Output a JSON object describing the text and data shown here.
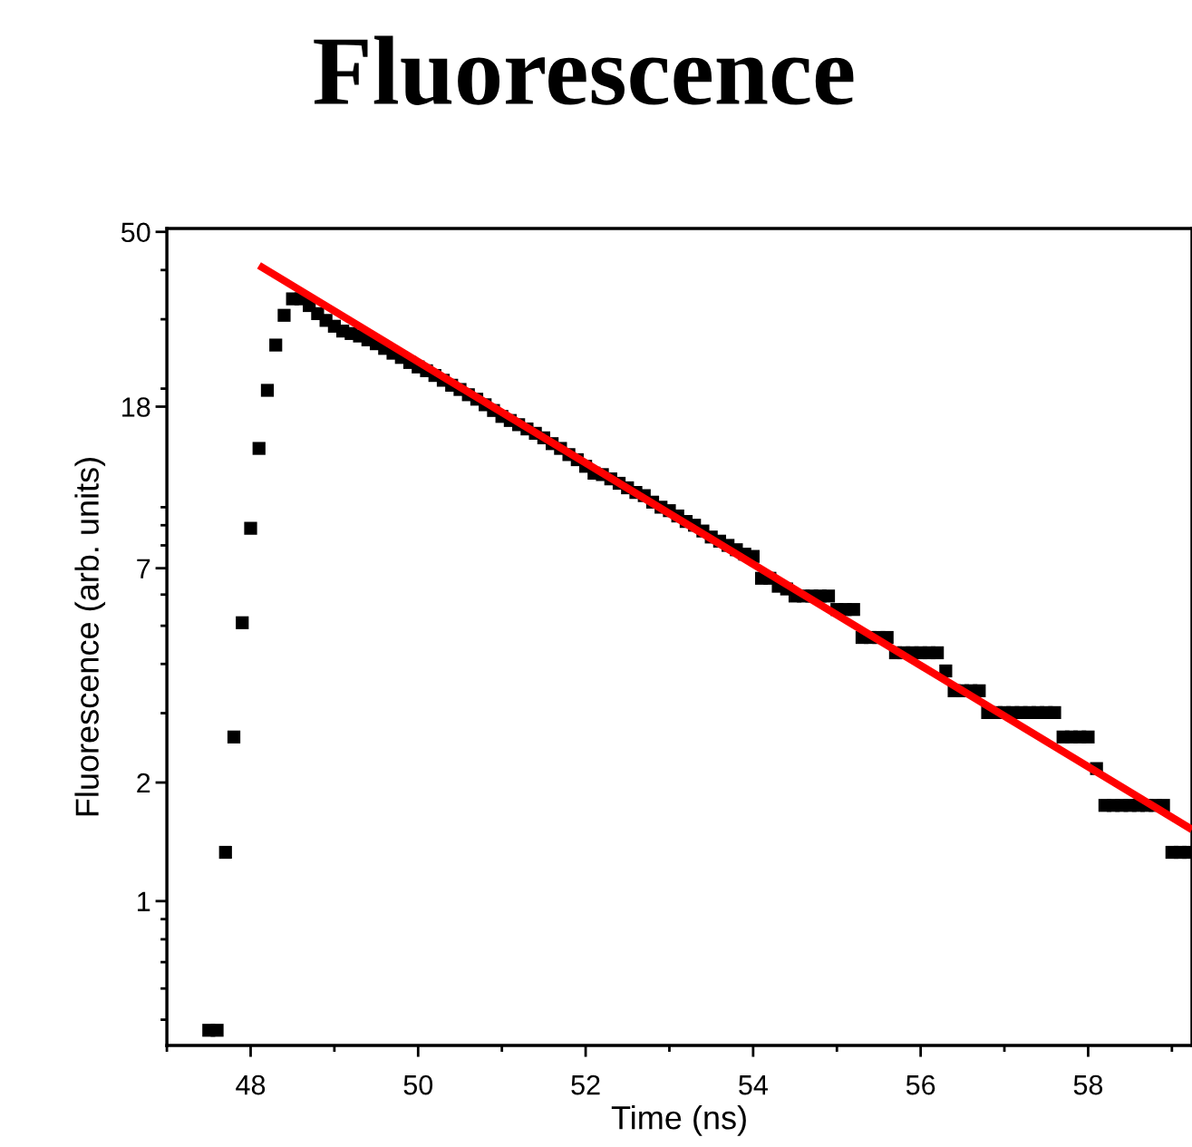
{
  "chart_data": {
    "type": "scatter",
    "title": "Fluorescence",
    "xlabel": "Time (ns)",
    "ylabel": "Fluorescence (arb. units)",
    "log": "y",
    "grid": false,
    "legend": false,
    "xlim": [
      47.0,
      59.24
    ],
    "xticks": [
      48,
      50,
      52,
      54,
      56,
      58
    ],
    "ylim": [
      0.43,
      51
    ],
    "yticks": [
      50,
      18,
      7,
      2,
      1
    ],
    "series": [
      {
        "type": "scatter",
        "marker": "square",
        "color": "#000000",
        "x": [
          47.5,
          47.6,
          47.7,
          47.8,
          47.9,
          48.0,
          48.1,
          48.2,
          48.3,
          48.4,
          48.5,
          48.6,
          48.7,
          48.8,
          48.9,
          49.0,
          49.1,
          49.2,
          49.3,
          49.4,
          49.5,
          49.6,
          49.7,
          49.8,
          49.9,
          50.0,
          50.1,
          50.2,
          50.3,
          50.4,
          50.5,
          50.6,
          50.7,
          50.8,
          50.9,
          51.0,
          51.1,
          51.2,
          51.3,
          51.4,
          51.5,
          51.6,
          51.7,
          51.8,
          51.9,
          52.0,
          52.1,
          52.2,
          52.3,
          52.4,
          52.5,
          52.6,
          52.7,
          52.8,
          52.9,
          53.0,
          53.1,
          53.2,
          53.3,
          53.4,
          53.5,
          53.6,
          53.7,
          53.8,
          53.9,
          54.0,
          54.1,
          54.2,
          54.3,
          54.4,
          54.5,
          54.6,
          54.7,
          54.8,
          54.9,
          55.0,
          55.1,
          55.2,
          55.3,
          55.4,
          55.5,
          55.6,
          55.7,
          55.8,
          55.9,
          56.0,
          56.1,
          56.2,
          56.3,
          56.4,
          56.5,
          56.6,
          56.7,
          56.8,
          56.9,
          57.0,
          57.1,
          57.2,
          57.3,
          57.4,
          57.5,
          57.6,
          57.7,
          57.8,
          57.9,
          58.0,
          58.1,
          58.2,
          58.3,
          58.4,
          58.5,
          58.6,
          58.7,
          58.8,
          58.9,
          59.0,
          59.1,
          59.2
        ],
        "values": [
          0.47,
          0.47,
          1.33,
          2.61,
          5.09,
          8.84,
          14.1,
          19.8,
          25.8,
          30.7,
          33.8,
          33.8,
          32.5,
          31.0,
          29.8,
          28.8,
          28.0,
          27.6,
          27.2,
          26.6,
          26.0,
          25.3,
          24.6,
          24.0,
          23.3,
          22.7,
          22.2,
          21.6,
          21.0,
          20.4,
          19.9,
          19.3,
          18.8,
          18.2,
          17.6,
          17.0,
          16.6,
          16.2,
          15.8,
          15.4,
          15.0,
          14.5,
          14.1,
          13.6,
          13.2,
          12.7,
          12.2,
          12.1,
          11.8,
          11.5,
          11.2,
          10.9,
          10.7,
          10.3,
          10.0,
          9.8,
          9.5,
          9.2,
          9.0,
          8.7,
          8.4,
          8.2,
          8.0,
          7.8,
          7.6,
          7.5,
          6.6,
          6.6,
          6.3,
          6.2,
          5.95,
          5.95,
          5.95,
          5.95,
          5.95,
          5.5,
          5.5,
          5.5,
          4.67,
          4.67,
          4.67,
          4.67,
          4.27,
          4.27,
          4.27,
          4.27,
          4.27,
          4.27,
          3.84,
          3.42,
          3.42,
          3.42,
          3.42,
          3.01,
          3.01,
          3.01,
          3.01,
          3.01,
          3.01,
          3.01,
          3.01,
          3.01,
          2.61,
          2.61,
          2.61,
          2.61,
          2.17,
          1.75,
          1.75,
          1.75,
          1.75,
          1.75,
          1.75,
          1.75,
          1.75,
          1.33,
          1.33,
          1.33
        ]
      },
      {
        "type": "line",
        "color": "#ff0000",
        "x": [
          48.1,
          59.24
        ],
        "values": [
          41.1,
          1.52
        ]
      }
    ]
  }
}
